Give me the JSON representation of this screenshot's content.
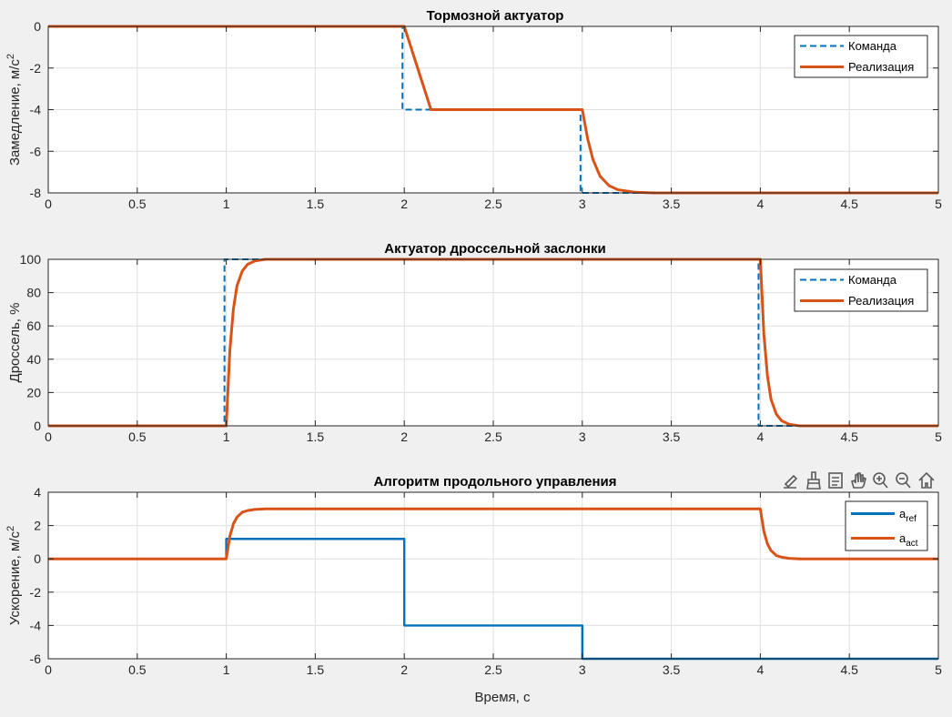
{
  "toolbar": {
    "icons": [
      "export-icon",
      "brush-icon",
      "datatip-icon",
      "pan-icon",
      "zoom-in-icon",
      "zoom-out-icon",
      "home-icon"
    ]
  },
  "chart_data": [
    {
      "type": "line",
      "title": "Тормозной актуатор",
      "ylabel": "Замедление, м/с",
      "ylabel_sup": "2",
      "xlabel": "",
      "xlim": [
        0,
        5
      ],
      "ylim": [
        -8,
        0
      ],
      "xticks": [
        "0",
        "0.5",
        "1",
        "1.5",
        "2",
        "2.5",
        "3",
        "3.5",
        "4",
        "4.5",
        "5"
      ],
      "yticks": [
        "-8",
        "-6",
        "-4",
        "-2",
        "0"
      ],
      "grid": true,
      "legend_position": "top-right",
      "series": [
        {
          "name": "Команда",
          "style": "dashed",
          "color": "#0072BD",
          "x": [
            0,
            1.99,
            1.99,
            2.99,
            2.99,
            5
          ],
          "y": [
            0,
            0,
            -4,
            -4,
            -8,
            -8
          ]
        },
        {
          "name": "Реализация",
          "style": "solid",
          "color": "#D95319",
          "x": [
            0,
            2.0,
            2.15,
            3.0,
            3.03,
            3.06,
            3.1,
            3.15,
            3.2,
            3.3,
            3.4,
            5
          ],
          "y": [
            0,
            0,
            -4,
            -4,
            -5.4,
            -6.4,
            -7.2,
            -7.65,
            -7.85,
            -7.97,
            -8,
            -8
          ]
        }
      ]
    },
    {
      "type": "line",
      "title": "Актуатор дроссельной заслонки",
      "ylabel": "Дроссель, %",
      "xlabel": "",
      "xlim": [
        0,
        5
      ],
      "ylim": [
        0,
        100
      ],
      "xticks": [
        "0",
        "0.5",
        "1",
        "1.5",
        "2",
        "2.5",
        "3",
        "3.5",
        "4",
        "4.5",
        "5"
      ],
      "yticks": [
        "0",
        "20",
        "40",
        "60",
        "80",
        "100"
      ],
      "grid": true,
      "legend_position": "top-right",
      "series": [
        {
          "name": "Команда",
          "style": "dashed",
          "color": "#0072BD",
          "x": [
            0,
            0.99,
            0.99,
            3.99,
            3.99,
            5
          ],
          "y": [
            0,
            0,
            100,
            100,
            0,
            0
          ]
        },
        {
          "name": "Реализация",
          "style": "solid",
          "color": "#D95319",
          "x": [
            0,
            1.0,
            1.02,
            1.04,
            1.06,
            1.09,
            1.12,
            1.16,
            1.22,
            1.3,
            4.0,
            4.02,
            4.04,
            4.06,
            4.09,
            4.12,
            4.16,
            4.22,
            4.3,
            5
          ],
          "y": [
            0,
            0,
            45,
            70,
            84,
            93,
            97,
            99,
            100,
            100,
            100,
            55,
            30,
            16,
            7,
            3,
            1,
            0,
            0,
            0
          ]
        }
      ]
    },
    {
      "type": "line",
      "title": "Алгоритм продольного управления",
      "ylabel": "Ускорение, м/с",
      "ylabel_sup": "2",
      "xlabel": "Время, с",
      "xlim": [
        0,
        5
      ],
      "ylim": [
        -6,
        4
      ],
      "xticks": [
        "0",
        "0.5",
        "1",
        "1.5",
        "2",
        "2.5",
        "3",
        "3.5",
        "4",
        "4.5",
        "5"
      ],
      "yticks": [
        "-6",
        "-4",
        "-2",
        "0",
        "2",
        "4"
      ],
      "grid": true,
      "legend_position": "top-right",
      "series": [
        {
          "name": "a",
          "name_sub": "ref",
          "style": "solid",
          "color": "#0072BD",
          "x": [
            0,
            1.0,
            1.0,
            2.0,
            2.0,
            3.0,
            3.0,
            5
          ],
          "y": [
            0,
            0,
            1.2,
            1.2,
            -4,
            -4,
            -6,
            -6
          ]
        },
        {
          "name": "a",
          "name_sub": "act",
          "style": "solid",
          "color": "#D95319",
          "x": [
            0,
            1.0,
            1.02,
            1.04,
            1.06,
            1.09,
            1.12,
            1.16,
            1.22,
            1.3,
            4.0,
            4.02,
            4.04,
            4.06,
            4.09,
            4.12,
            4.16,
            4.22,
            4.3,
            5
          ],
          "y": [
            0,
            0,
            1.35,
            2.1,
            2.5,
            2.8,
            2.9,
            2.97,
            3,
            3,
            3,
            1.65,
            0.9,
            0.5,
            0.2,
            0.1,
            0.03,
            0,
            0,
            0
          ]
        }
      ]
    }
  ]
}
